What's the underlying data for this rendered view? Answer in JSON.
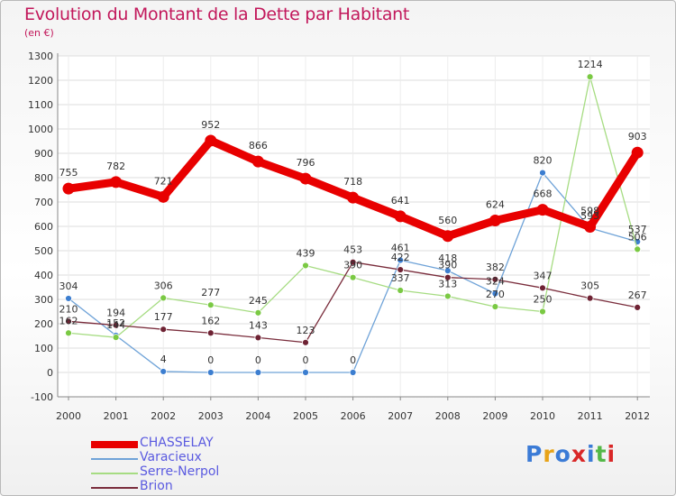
{
  "title": "Evolution du Montant de la Dette par Habitant",
  "unit": "(en €)",
  "logo": {
    "letters": [
      "P",
      "r",
      "o",
      "x",
      "i",
      "t",
      "i"
    ],
    "colors": [
      "#3b7bd6",
      "#e8a317",
      "#3b7bd6",
      "#d92727",
      "#3b7bd6",
      "#54b848",
      "#d92727"
    ]
  },
  "chart_data": {
    "type": "line",
    "categories": [
      "2000",
      "2001",
      "2002",
      "2003",
      "2004",
      "2005",
      "2006",
      "2007",
      "2008",
      "2009",
      "2010",
      "2011",
      "2012"
    ],
    "ylim": [
      -100,
      1300
    ],
    "yticks": [
      -100,
      0,
      100,
      200,
      300,
      400,
      500,
      600,
      700,
      800,
      900,
      1000,
      1100,
      1200,
      1300
    ],
    "grid": true,
    "legend_position": "bottom-left",
    "series": [
      {
        "name": "CHASSELAY",
        "color": "#e80000",
        "line_width": 9,
        "marker_radius": 6.5,
        "values": [
          755,
          782,
          721,
          952,
          866,
          796,
          718,
          641,
          560,
          624,
          668,
          598,
          903
        ]
      },
      {
        "name": "Varacieux",
        "color": "#6fa3d8",
        "marker_color": "#3c7ed0",
        "line_width": 1.3,
        "marker_radius": 3.5,
        "values": [
          304,
          152,
          4,
          0,
          0,
          0,
          0,
          461,
          418,
          324,
          820,
          593,
          537
        ]
      },
      {
        "name": "Serre-Nerpol",
        "color": "#a6dc82",
        "marker_color": "#7ac943",
        "line_width": 1.3,
        "marker_radius": 3.5,
        "values": [
          162,
          144,
          306,
          277,
          245,
          439,
          390,
          337,
          313,
          270,
          250,
          1214,
          506
        ]
      },
      {
        "name": "Brion",
        "color": "#7a2d3c",
        "marker_color": "#6e2233",
        "line_width": 1.3,
        "marker_radius": 3.5,
        "values": [
          210,
          194,
          177,
          162,
          143,
          123,
          453,
          422,
          390,
          382,
          347,
          305,
          267
        ]
      }
    ]
  }
}
